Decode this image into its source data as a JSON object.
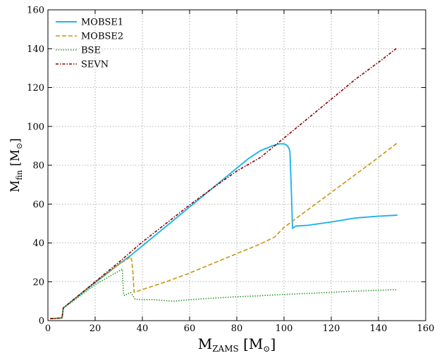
{
  "chart_data": {
    "type": "line",
    "title": "",
    "xlabel": {
      "main": "M",
      "sub": "ZAMS",
      "unit_open": " [M",
      "unit_symbol": "⊙",
      "unit_close": "]"
    },
    "ylabel": {
      "main": "M",
      "sub": "fin",
      "unit_open": " [M",
      "unit_symbol": "⊙",
      "unit_close": "]"
    },
    "xlim": [
      0,
      160
    ],
    "ylim": [
      0,
      160
    ],
    "xticks": [
      0,
      20,
      40,
      60,
      80,
      100,
      120,
      140,
      160
    ],
    "yticks": [
      0,
      20,
      40,
      60,
      80,
      100,
      120,
      140,
      160
    ],
    "grid": true,
    "legend_position": "top-left",
    "series": [
      {
        "name": "MOBSE1",
        "color": "#1fb5e8",
        "dash": "solid",
        "x": [
          1,
          5,
          6,
          6.5,
          10,
          20,
          30,
          36,
          40,
          50,
          60,
          70,
          80,
          85,
          90,
          95,
          98,
          100,
          101,
          102,
          102.5,
          103,
          103.6,
          105,
          110,
          120,
          130,
          140,
          148
        ],
        "y": [
          1,
          1.3,
          1.5,
          6.5,
          10,
          19.5,
          29,
          34.5,
          38.5,
          48.5,
          58.5,
          68.5,
          78.5,
          83.5,
          87.5,
          90,
          91,
          91,
          90.5,
          89,
          87,
          70,
          47.5,
          48.7,
          49.1,
          50.8,
          52.8,
          53.8,
          54.3
        ]
      },
      {
        "name": "MOBSE2",
        "color": "#c99415",
        "dash": "dashed",
        "x": [
          1,
          5,
          6,
          6.5,
          10,
          20,
          30,
          34,
          35,
          35.5,
          36,
          36.5,
          40,
          50,
          60,
          70,
          80,
          90,
          96,
          100,
          110,
          120,
          130,
          140,
          148
        ],
        "y": [
          1,
          1.3,
          1.5,
          6.5,
          10,
          20,
          29,
          32,
          33,
          31,
          25,
          14.5,
          16,
          20,
          24.5,
          29.5,
          34.5,
          39.5,
          43,
          48,
          57,
          66,
          75,
          84,
          91.5
        ]
      },
      {
        "name": "BSE",
        "color": "#2e9a2e",
        "dash": "dotted",
        "x": [
          1,
          5,
          6,
          6.5,
          10,
          20,
          25,
          30,
          31.5,
          32,
          32.5,
          35,
          37,
          40,
          45,
          50,
          53,
          55,
          60,
          70,
          80,
          90,
          100,
          110,
          120,
          130,
          140,
          148
        ],
        "y": [
          1,
          1.3,
          1.5,
          6.5,
          9.5,
          18.5,
          22,
          25.5,
          26.5,
          13.5,
          13,
          14.5,
          11,
          10.8,
          10.8,
          10.3,
          10,
          10.2,
          10.8,
          11.6,
          12.3,
          12.8,
          13.5,
          14,
          14.6,
          15.2,
          15.6,
          16
        ]
      },
      {
        "name": "SEVN",
        "color": "#8b0000",
        "dash": "dashdot",
        "x": [
          1,
          5,
          6,
          6.5,
          10,
          20,
          30,
          40,
          50,
          60,
          70,
          80,
          85,
          90,
          95,
          100,
          110,
          120,
          130,
          140,
          148
        ],
        "y": [
          1,
          1.3,
          1.5,
          6.5,
          10,
          20,
          30,
          40.5,
          50,
          59.5,
          68.5,
          77,
          80.5,
          84,
          89,
          94,
          104,
          114,
          124,
          133,
          140.5
        ]
      }
    ]
  }
}
